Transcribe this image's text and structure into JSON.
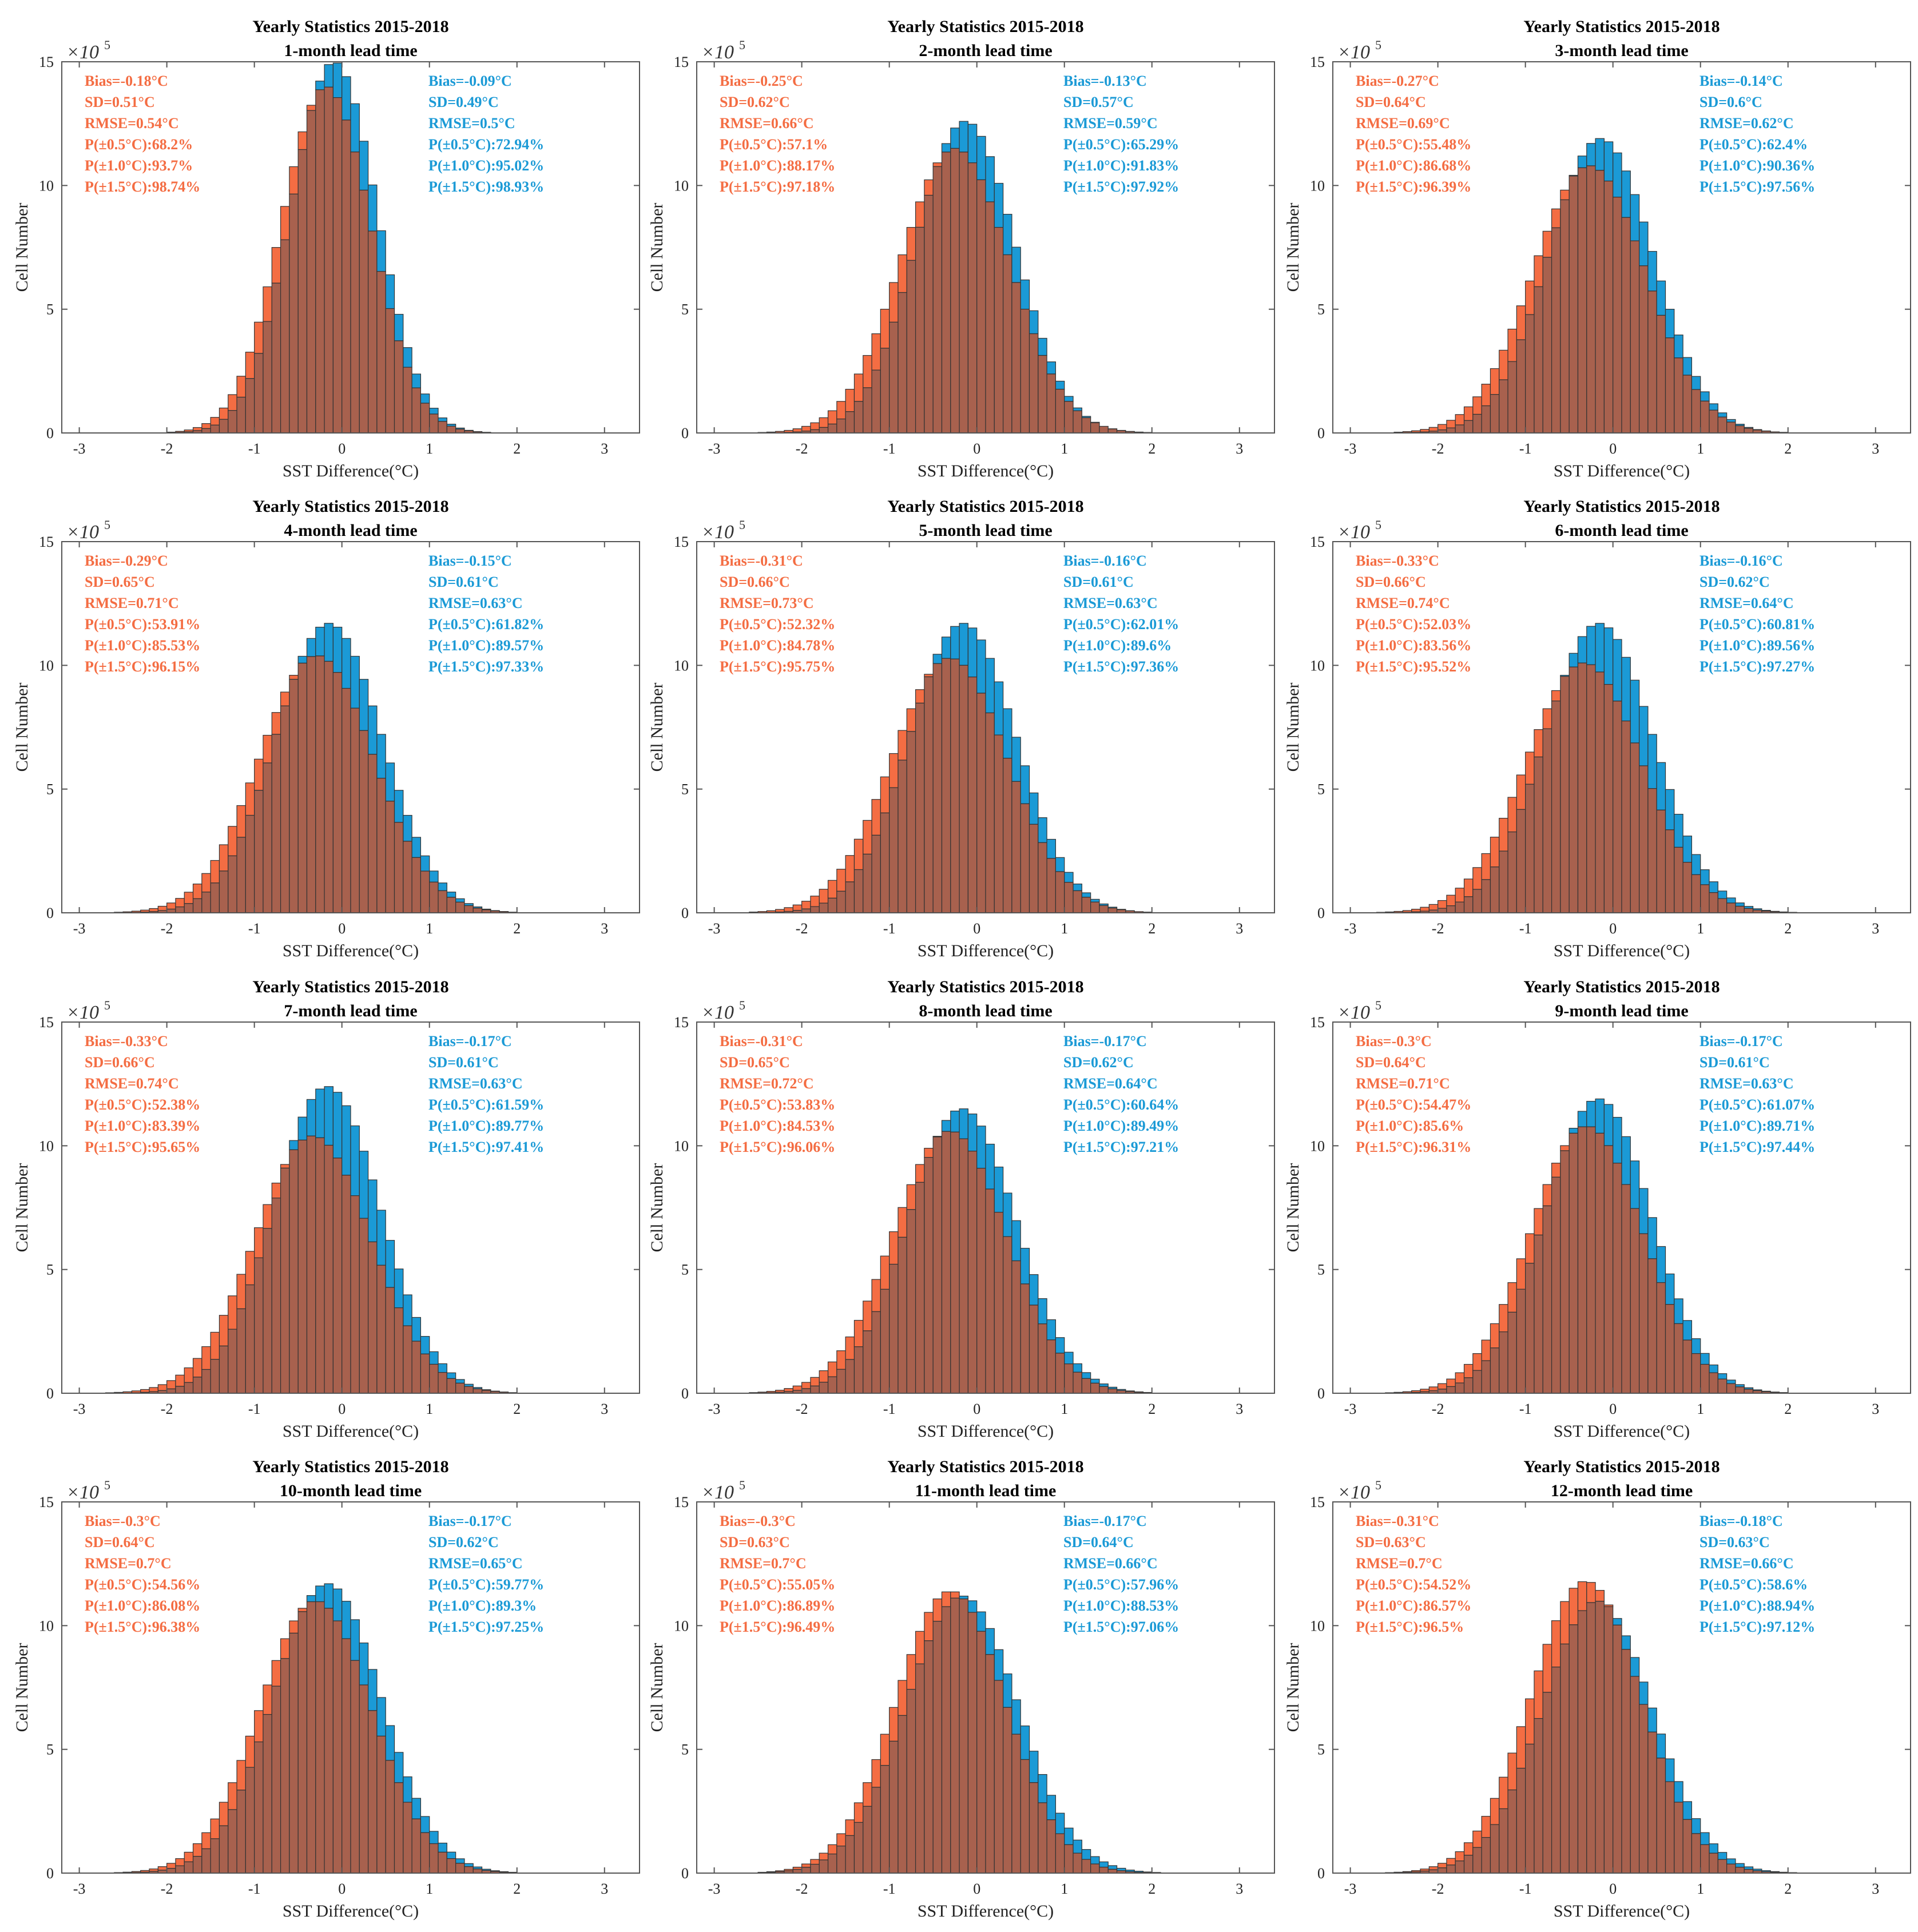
{
  "figure": {
    "colors": {
      "model_a": "#F46D43",
      "model_b": "#1B9AD6",
      "overlap": "#A8614E",
      "bar_edge": "#333333",
      "axis": "#555555"
    },
    "legend_placement": "none"
  },
  "chart_data": [
    {
      "type": "bar",
      "title": "Yearly Statistics 2015-2018",
      "subtitle": "1-month lead time",
      "xlabel": "SST Difference(°C)",
      "ylabel": "Cell Number",
      "xlim": [
        -3.2,
        3.4
      ],
      "ylim": [
        0,
        15
      ],
      "y_multiplier": "×10",
      "y_exponent": "5",
      "xticks": [
        "-3",
        "-2",
        "-1",
        "0",
        "1",
        "2",
        "3"
      ],
      "yticks": [
        "0",
        "5",
        "10",
        "15"
      ],
      "series": [
        {
          "name": "orange",
          "color": "#F46D43",
          "mean": -0.18,
          "sd": 0.51,
          "peak": 14.0,
          "stats": [
            "Bias=-0.18°C",
            "SD=0.51°C",
            "RMSE=0.54°C",
            "P(±0.5°C):68.2%",
            "P(±1.0°C):93.7%",
            "P(±1.5°C):98.74%"
          ]
        },
        {
          "name": "blue",
          "color": "#1B9AD6",
          "mean": -0.09,
          "sd": 0.49,
          "peak": 15.0,
          "stats": [
            "Bias=-0.09°C",
            "SD=0.49°C",
            "RMSE=0.5°C",
            "P(±0.5°C):72.94%",
            "P(±1.0°C):95.02%",
            "P(±1.5°C):98.93%"
          ]
        }
      ]
    },
    {
      "type": "bar",
      "title": "Yearly Statistics 2015-2018",
      "subtitle": "2-month lead time",
      "xlabel": "SST Difference(°C)",
      "ylabel": "Cell Number",
      "xlim": [
        -3.2,
        3.4
      ],
      "ylim": [
        0,
        15
      ],
      "y_multiplier": "×10",
      "y_exponent": "5",
      "xticks": [
        "-3",
        "-2",
        "-1",
        "0",
        "1",
        "2",
        "3"
      ],
      "yticks": [
        "0",
        "5",
        "10",
        "15"
      ],
      "series": [
        {
          "name": "orange",
          "color": "#F46D43",
          "mean": -0.25,
          "sd": 0.62,
          "peak": 11.5,
          "stats": [
            "Bias=-0.25°C",
            "SD=0.62°C",
            "RMSE=0.66°C",
            "P(±0.5°C):57.1%",
            "P(±1.0°C):88.17%",
            "P(±1.5°C):97.18%"
          ]
        },
        {
          "name": "blue",
          "color": "#1B9AD6",
          "mean": -0.13,
          "sd": 0.57,
          "peak": 12.6,
          "stats": [
            "Bias=-0.13°C",
            "SD=0.57°C",
            "RMSE=0.59°C",
            "P(±0.5°C):65.29%",
            "P(±1.0°C):91.83%",
            "P(±1.5°C):97.92%"
          ]
        }
      ]
    },
    {
      "type": "bar",
      "title": "Yearly Statistics 2015-2018",
      "subtitle": "3-month lead time",
      "xlabel": "SST Difference(°C)",
      "ylabel": "Cell Number",
      "xlim": [
        -3.2,
        3.4
      ],
      "ylim": [
        0,
        15
      ],
      "y_multiplier": "×10",
      "y_exponent": "5",
      "xticks": [
        "-3",
        "-2",
        "-1",
        "0",
        "1",
        "2",
        "3"
      ],
      "yticks": [
        "0",
        "5",
        "10",
        "15"
      ],
      "series": [
        {
          "name": "orange",
          "color": "#F46D43",
          "mean": -0.27,
          "sd": 0.64,
          "peak": 10.8,
          "stats": [
            "Bias=-0.27°C",
            "SD=0.64°C",
            "RMSE=0.69°C",
            "P(±0.5°C):55.48%",
            "P(±1.0°C):86.68%",
            "P(±1.5°C):96.39%"
          ]
        },
        {
          "name": "blue",
          "color": "#1B9AD6",
          "mean": -0.14,
          "sd": 0.6,
          "peak": 11.9,
          "stats": [
            "Bias=-0.14°C",
            "SD=0.6°C",
            "RMSE=0.62°C",
            "P(±0.5°C):62.4%",
            "P(±1.0°C):90.36%",
            "P(±1.5°C):97.56%"
          ]
        }
      ]
    },
    {
      "type": "bar",
      "title": "Yearly Statistics 2015-2018",
      "subtitle": "4-month lead time",
      "xlabel": "SST Difference(°C)",
      "ylabel": "Cell Number",
      "xlim": [
        -3.2,
        3.4
      ],
      "ylim": [
        0,
        15
      ],
      "y_multiplier": "×10",
      "y_exponent": "5",
      "xticks": [
        "-3",
        "-2",
        "-1",
        "0",
        "1",
        "2",
        "3"
      ],
      "yticks": [
        "0",
        "5",
        "10",
        "15"
      ],
      "series": [
        {
          "name": "orange",
          "color": "#F46D43",
          "mean": -0.29,
          "sd": 0.65,
          "peak": 10.4,
          "stats": [
            "Bias=-0.29°C",
            "SD=0.65°C",
            "RMSE=0.71°C",
            "P(±0.5°C):53.91%",
            "P(±1.0°C):85.53%",
            "P(±1.5°C):96.15%"
          ]
        },
        {
          "name": "blue",
          "color": "#1B9AD6",
          "mean": -0.15,
          "sd": 0.61,
          "peak": 11.7,
          "stats": [
            "Bias=-0.15°C",
            "SD=0.61°C",
            "RMSE=0.63°C",
            "P(±0.5°C):61.82%",
            "P(±1.0°C):89.57%",
            "P(±1.5°C):97.33%"
          ]
        }
      ]
    },
    {
      "type": "bar",
      "title": "Yearly Statistics 2015-2018",
      "subtitle": "5-month lead time",
      "xlabel": "SST Difference(°C)",
      "ylabel": "Cell Number",
      "xlim": [
        -3.2,
        3.4
      ],
      "ylim": [
        0,
        15
      ],
      "y_multiplier": "×10",
      "y_exponent": "5",
      "xticks": [
        "-3",
        "-2",
        "-1",
        "0",
        "1",
        "2",
        "3"
      ],
      "yticks": [
        "0",
        "5",
        "10",
        "15"
      ],
      "series": [
        {
          "name": "orange",
          "color": "#F46D43",
          "mean": -0.31,
          "sd": 0.66,
          "peak": 10.3,
          "stats": [
            "Bias=-0.31°C",
            "SD=0.66°C",
            "RMSE=0.73°C",
            "P(±0.5°C):52.32%",
            "P(±1.0°C):84.78%",
            "P(±1.5°C):95.75%"
          ]
        },
        {
          "name": "blue",
          "color": "#1B9AD6",
          "mean": -0.16,
          "sd": 0.61,
          "peak": 11.7,
          "stats": [
            "Bias=-0.16°C",
            "SD=0.61°C",
            "RMSE=0.63°C",
            "P(±0.5°C):62.01%",
            "P(±1.0°C):89.6%",
            "P(±1.5°C):97.36%"
          ]
        }
      ]
    },
    {
      "type": "bar",
      "title": "Yearly Statistics 2015-2018",
      "subtitle": "6-month lead time",
      "xlabel": "SST Difference(°C)",
      "ylabel": "Cell Number",
      "xlim": [
        -3.2,
        3.4
      ],
      "ylim": [
        0,
        15
      ],
      "y_multiplier": "×10",
      "y_exponent": "5",
      "xticks": [
        "-3",
        "-2",
        "-1",
        "0",
        "1",
        "2",
        "3"
      ],
      "yticks": [
        "0",
        "5",
        "10",
        "15"
      ],
      "series": [
        {
          "name": "orange",
          "color": "#F46D43",
          "mean": -0.33,
          "sd": 0.66,
          "peak": 10.1,
          "stats": [
            "Bias=-0.33°C",
            "SD=0.66°C",
            "RMSE=0.74°C",
            "P(±0.5°C):52.03%",
            "P(±1.0°C):83.56%",
            "P(±1.5°C):95.52%"
          ]
        },
        {
          "name": "blue",
          "color": "#1B9AD6",
          "mean": -0.16,
          "sd": 0.62,
          "peak": 11.7,
          "stats": [
            "Bias=-0.16°C",
            "SD=0.62°C",
            "RMSE=0.64°C",
            "P(±0.5°C):60.81%",
            "P(±1.0°C):89.56%",
            "P(±1.5°C):97.27%"
          ]
        }
      ]
    },
    {
      "type": "bar",
      "title": "Yearly Statistics 2015-2018",
      "subtitle": "7-month lead time",
      "xlabel": "SST Difference(°C)",
      "ylabel": "Cell Number",
      "xlim": [
        -3.2,
        3.4
      ],
      "ylim": [
        0,
        15
      ],
      "y_multiplier": "×10",
      "y_exponent": "5",
      "xticks": [
        "-3",
        "-2",
        "-1",
        "0",
        "1",
        "2",
        "3"
      ],
      "yticks": [
        "0",
        "5",
        "10",
        "15"
      ],
      "series": [
        {
          "name": "orange",
          "color": "#F46D43",
          "mean": -0.33,
          "sd": 0.66,
          "peak": 10.4,
          "stats": [
            "Bias=-0.33°C",
            "SD=0.66°C",
            "RMSE=0.74°C",
            "P(±0.5°C):52.38%",
            "P(±1.0°C):83.39%",
            "P(±1.5°C):95.65%"
          ]
        },
        {
          "name": "blue",
          "color": "#1B9AD6",
          "mean": -0.17,
          "sd": 0.61,
          "peak": 12.4,
          "stats": [
            "Bias=-0.17°C",
            "SD=0.61°C",
            "RMSE=0.63°C",
            "P(±0.5°C):61.59%",
            "P(±1.0°C):89.77%",
            "P(±1.5°C):97.41%"
          ]
        }
      ]
    },
    {
      "type": "bar",
      "title": "Yearly Statistics 2015-2018",
      "subtitle": "8-month lead time",
      "xlabel": "SST Difference(°C)",
      "ylabel": "Cell Number",
      "xlim": [
        -3.2,
        3.4
      ],
      "ylim": [
        0,
        15
      ],
      "y_multiplier": "×10",
      "y_exponent": "5",
      "xticks": [
        "-3",
        "-2",
        "-1",
        "0",
        "1",
        "2",
        "3"
      ],
      "yticks": [
        "0",
        "5",
        "10",
        "15"
      ],
      "series": [
        {
          "name": "orange",
          "color": "#F46D43",
          "mean": -0.31,
          "sd": 0.65,
          "peak": 10.6,
          "stats": [
            "Bias=-0.31°C",
            "SD=0.65°C",
            "RMSE=0.72°C",
            "P(±0.5°C):53.83%",
            "P(±1.0°C):84.53%",
            "P(±1.5°C):96.06%"
          ]
        },
        {
          "name": "blue",
          "color": "#1B9AD6",
          "mean": -0.17,
          "sd": 0.62,
          "peak": 11.5,
          "stats": [
            "Bias=-0.17°C",
            "SD=0.62°C",
            "RMSE=0.64°C",
            "P(±0.5°C):60.64%",
            "P(±1.0°C):89.49%",
            "P(±1.5°C):97.21%"
          ]
        }
      ]
    },
    {
      "type": "bar",
      "title": "Yearly Statistics 2015-2018",
      "subtitle": "9-month lead time",
      "xlabel": "SST Difference(°C)",
      "ylabel": "Cell Number",
      "xlim": [
        -3.2,
        3.4
      ],
      "ylim": [
        0,
        15
      ],
      "y_multiplier": "×10",
      "y_exponent": "5",
      "xticks": [
        "-3",
        "-2",
        "-1",
        "0",
        "1",
        "2",
        "3"
      ],
      "yticks": [
        "0",
        "5",
        "10",
        "15"
      ],
      "series": [
        {
          "name": "orange",
          "color": "#F46D43",
          "mean": -0.3,
          "sd": 0.64,
          "peak": 10.8,
          "stats": [
            "Bias=-0.3°C",
            "SD=0.64°C",
            "RMSE=0.71°C",
            "P(±0.5°C):54.47%",
            "P(±1.0°C):85.6%",
            "P(±1.5°C):96.31%"
          ]
        },
        {
          "name": "blue",
          "color": "#1B9AD6",
          "mean": -0.17,
          "sd": 0.61,
          "peak": 11.9,
          "stats": [
            "Bias=-0.17°C",
            "SD=0.61°C",
            "RMSE=0.63°C",
            "P(±0.5°C):61.07%",
            "P(±1.0°C):89.71%",
            "P(±1.5°C):97.44%"
          ]
        }
      ]
    },
    {
      "type": "bar",
      "title": "Yearly Statistics 2015-2018",
      "subtitle": "10-month lead time",
      "xlabel": "SST Difference(°C)",
      "ylabel": "Cell Number",
      "xlim": [
        -3.2,
        3.4
      ],
      "ylim": [
        0,
        15
      ],
      "y_multiplier": "×10",
      "y_exponent": "5",
      "xticks": [
        "-3",
        "-2",
        "-1",
        "0",
        "1",
        "2",
        "3"
      ],
      "yticks": [
        "0",
        "5",
        "10",
        "15"
      ],
      "series": [
        {
          "name": "orange",
          "color": "#F46D43",
          "mean": -0.3,
          "sd": 0.64,
          "peak": 11.0,
          "stats": [
            "Bias=-0.3°C",
            "SD=0.64°C",
            "RMSE=0.7°C",
            "P(±0.5°C):54.56%",
            "P(±1.0°C):86.08%",
            "P(±1.5°C):96.38%"
          ]
        },
        {
          "name": "blue",
          "color": "#1B9AD6",
          "mean": -0.17,
          "sd": 0.62,
          "peak": 11.7,
          "stats": [
            "Bias=-0.17°C",
            "SD=0.62°C",
            "RMSE=0.65°C",
            "P(±0.5°C):59.77%",
            "P(±1.0°C):89.3%",
            "P(±1.5°C):97.25%"
          ]
        }
      ]
    },
    {
      "type": "bar",
      "title": "Yearly Statistics 2015-2018",
      "subtitle": "11-month lead time",
      "xlabel": "SST Difference(°C)",
      "ylabel": "Cell Number",
      "xlim": [
        -3.2,
        3.4
      ],
      "ylim": [
        0,
        15
      ],
      "y_multiplier": "×10",
      "y_exponent": "5",
      "xticks": [
        "-3",
        "-2",
        "-1",
        "0",
        "1",
        "2",
        "3"
      ],
      "yticks": [
        "0",
        "5",
        "10",
        "15"
      ],
      "series": [
        {
          "name": "orange",
          "color": "#F46D43",
          "mean": -0.3,
          "sd": 0.63,
          "peak": 11.4,
          "stats": [
            "Bias=-0.3°C",
            "SD=0.63°C",
            "RMSE=0.7°C",
            "P(±0.5°C):55.05%",
            "P(±1.0°C):86.89%",
            "P(±1.5°C):96.49%"
          ]
        },
        {
          "name": "blue",
          "color": "#1B9AD6",
          "mean": -0.17,
          "sd": 0.64,
          "peak": 11.2,
          "stats": [
            "Bias=-0.17°C",
            "SD=0.64°C",
            "RMSE=0.66°C",
            "P(±0.5°C):57.96%",
            "P(±1.0°C):88.53%",
            "P(±1.5°C):97.06%"
          ]
        }
      ]
    },
    {
      "type": "bar",
      "title": "Yearly Statistics 2015-2018",
      "subtitle": "12-month lead time",
      "xlabel": "SST Difference(°C)",
      "ylabel": "Cell Number",
      "xlim": [
        -3.2,
        3.4
      ],
      "ylim": [
        0,
        15
      ],
      "y_multiplier": "×10",
      "y_exponent": "5",
      "xticks": [
        "-3",
        "-2",
        "-1",
        "0",
        "1",
        "2",
        "3"
      ],
      "yticks": [
        "0",
        "5",
        "10",
        "15"
      ],
      "series": [
        {
          "name": "orange",
          "color": "#F46D43",
          "mean": -0.31,
          "sd": 0.63,
          "peak": 11.8,
          "stats": [
            "Bias=-0.31°C",
            "SD=0.63°C",
            "RMSE=0.7°C",
            "P(±0.5°C):54.52%",
            "P(±1.0°C):86.57%",
            "P(±1.5°C):96.5%"
          ]
        },
        {
          "name": "blue",
          "color": "#1B9AD6",
          "mean": -0.18,
          "sd": 0.63,
          "peak": 11.0,
          "stats": [
            "Bias=-0.18°C",
            "SD=0.63°C",
            "RMSE=0.66°C",
            "P(±0.5°C):58.6%",
            "P(±1.0°C):88.94%",
            "P(±1.5°C):97.12%"
          ]
        }
      ]
    }
  ]
}
